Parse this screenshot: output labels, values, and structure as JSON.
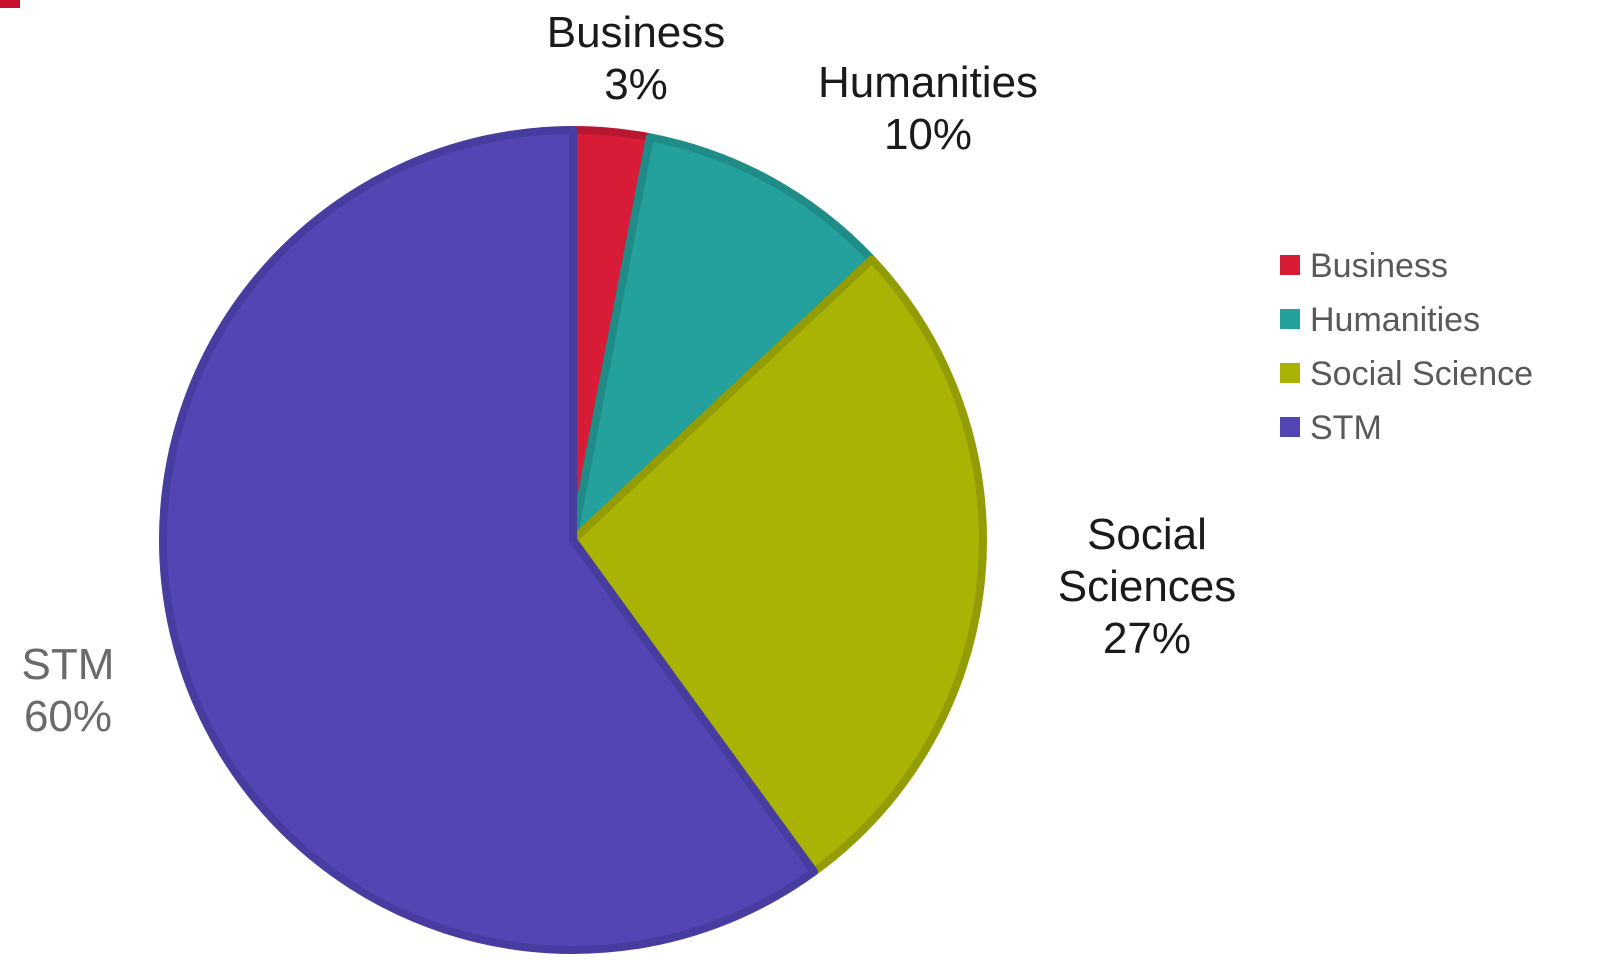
{
  "chart_data": {
    "type": "pie",
    "start_angle_deg": 0,
    "direction": "clockwise",
    "slices": [
      {
        "name": "Business",
        "legend": "Business",
        "label_lines": [
          "Business",
          "3%"
        ],
        "value": 3,
        "color": "#d81b36",
        "stroke": "#b81731",
        "label_color": "#1a1a1a"
      },
      {
        "name": "Humanities",
        "legend": "Humanities",
        "label_lines": [
          "Humanities",
          "10%"
        ],
        "value": 10,
        "color": "#24a19c",
        "stroke": "#1f8c88",
        "label_color": "#1a1a1a"
      },
      {
        "name": "Social Sciences",
        "legend": "Social Science",
        "label_lines": [
          "Social",
          "Sciences",
          "27%"
        ],
        "value": 27,
        "color": "#a8b304",
        "stroke": "#939c05",
        "label_color": "#1a1a1a"
      },
      {
        "name": "STM",
        "legend": "STM",
        "label_lines": [
          "STM",
          "60%"
        ],
        "value": 60,
        "color": "#5346b4",
        "stroke": "#473c9f",
        "label_color": "#6a6a6a"
      }
    ],
    "legend_position": "right"
  }
}
